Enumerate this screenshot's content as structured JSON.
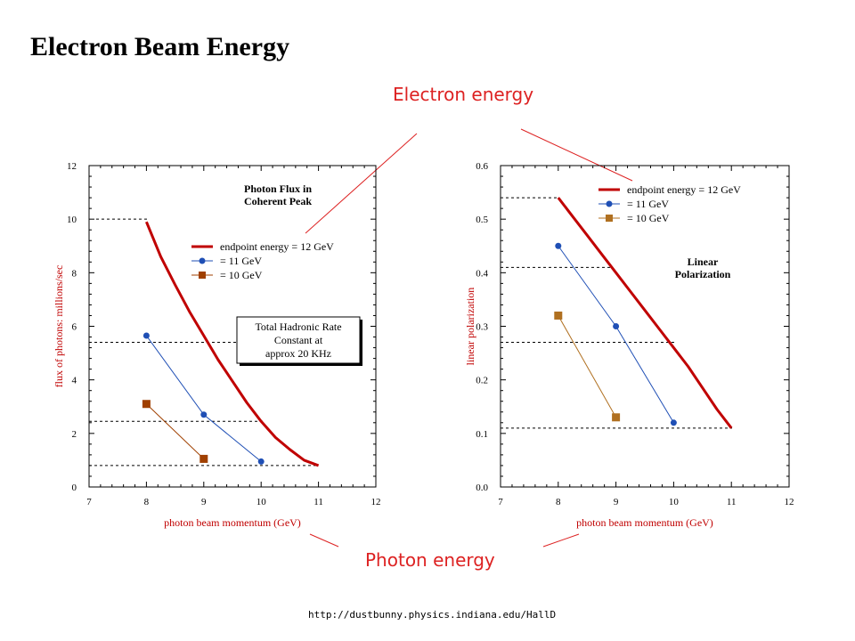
{
  "slide": {
    "title": "Electron Beam Energy",
    "callout_top": "Electron energy",
    "callout_bottom": "Photon energy",
    "footer_url": "http://dustbunny.physics.indiana.edu/HallD"
  },
  "colors": {
    "red_curve": "#c00000",
    "blue_series": "#1f4fb5",
    "brown_series": "#a04000",
    "orange_series": "#b07020",
    "axis_label": "#c00000",
    "callout": "#dd2222"
  },
  "chart_data": [
    {
      "type": "line",
      "panel_title": [
        "Photon Flux in",
        "Coherent Peak"
      ],
      "box_text": [
        "Total Hadronic Rate",
        "Constant at",
        "approx  20 KHz"
      ],
      "xlabel": "photon beam momentum (GeV)",
      "ylabel": "flux of photons: millions/sec",
      "xlim": [
        7,
        12
      ],
      "ylim": [
        0,
        12
      ],
      "xticks": [
        "7",
        "8",
        "9",
        "10",
        "11",
        "12"
      ],
      "yticks": [
        "0",
        "2",
        "4",
        "6",
        "8",
        "10",
        "12"
      ],
      "legend_position": "right",
      "series": [
        {
          "name": "endpoint energy = 12 GeV",
          "style": "curve",
          "color": "#c00000",
          "x": [
            8.0,
            8.25,
            8.5,
            8.75,
            9.0,
            9.25,
            9.5,
            9.75,
            10.0,
            10.25,
            10.5,
            10.75,
            11.0
          ],
          "y": [
            9.9,
            8.6,
            7.55,
            6.55,
            5.65,
            4.75,
            3.95,
            3.15,
            2.45,
            1.85,
            1.4,
            1.0,
            0.8
          ]
        },
        {
          "name": "= 11 GeV",
          "style": "marker-line",
          "marker": "circle",
          "color": "#1f4fb5",
          "x": [
            8,
            9,
            10
          ],
          "y": [
            5.65,
            2.7,
            0.95
          ]
        },
        {
          "name": "= 10 GeV",
          "style": "marker-line",
          "marker": "square",
          "color": "#a04000",
          "x": [
            8,
            9
          ],
          "y": [
            3.1,
            1.05
          ]
        }
      ],
      "reference_lines_y": [
        10.0,
        5.4,
        2.45,
        0.8
      ]
    },
    {
      "type": "line",
      "panel_title": [
        "Linear",
        "Polarization"
      ],
      "xlabel": "photon beam momentum (GeV)",
      "ylabel": "linear polarization",
      "xlim": [
        7,
        12
      ],
      "ylim": [
        0.0,
        0.6
      ],
      "xticks": [
        "7",
        "8",
        "9",
        "10",
        "11",
        "12"
      ],
      "yticks": [
        "0.0",
        "0.1",
        "0.2",
        "0.3",
        "0.4",
        "0.5",
        "0.6"
      ],
      "legend_position": "top-right",
      "series": [
        {
          "name": "endpoint energy = 12 GeV",
          "style": "curve",
          "color": "#c00000",
          "x": [
            8.0,
            8.25,
            8.5,
            8.75,
            9.0,
            9.25,
            9.5,
            9.75,
            10.0,
            10.25,
            10.5,
            10.75,
            11.0
          ],
          "y": [
            0.54,
            0.505,
            0.47,
            0.435,
            0.4,
            0.365,
            0.33,
            0.295,
            0.26,
            0.225,
            0.185,
            0.145,
            0.11
          ]
        },
        {
          "name": "= 11 GeV",
          "style": "marker-line",
          "marker": "circle",
          "color": "#1f4fb5",
          "x": [
            8,
            9,
            10
          ],
          "y": [
            0.45,
            0.3,
            0.12
          ]
        },
        {
          "name": "= 10 GeV",
          "style": "marker-line",
          "marker": "square",
          "color": "#b07020",
          "x": [
            8,
            9
          ],
          "y": [
            0.32,
            0.13
          ]
        }
      ],
      "reference_lines_y": [
        0.54,
        0.41,
        0.27,
        0.11
      ]
    }
  ]
}
